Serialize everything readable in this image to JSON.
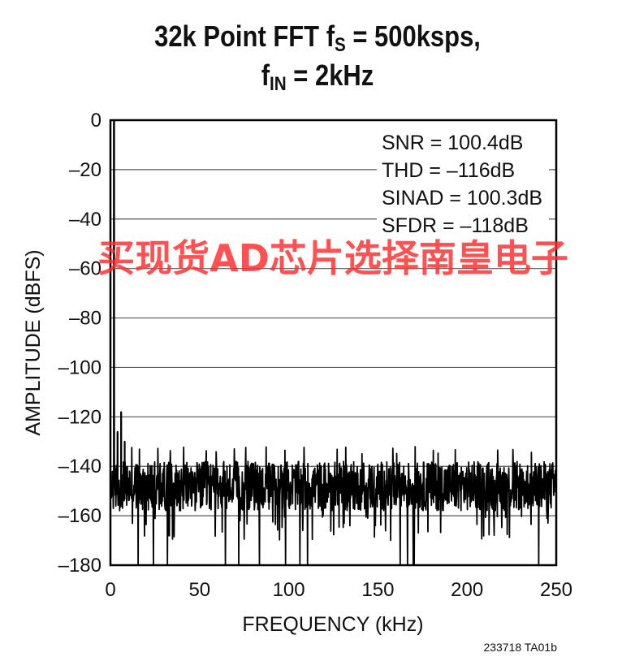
{
  "title": {
    "line1_prefix": "32k Point FFT f",
    "line1_sub": "S",
    "line1_suffix": " = 500ksps,",
    "line2_prefix": "f",
    "line2_sub": "IN",
    "line2_suffix": " = 2kHz"
  },
  "stats": [
    "SNR = 100.4dB",
    "THD = –116dB",
    "SINAD = 100.3dB",
    "SFDR = –118dB"
  ],
  "figure_id": "233718 TA01b",
  "watermark": "买现货AD芯片选择南皇电子",
  "chart_data": {
    "type": "line",
    "xlabel": "FREQUENCY (kHz)",
    "ylabel": "AMPLITUDE (dBFS)",
    "xlim": [
      0,
      250
    ],
    "ylim": [
      -180,
      0
    ],
    "x_ticks": [
      0,
      50,
      100,
      150,
      200,
      250
    ],
    "x_tick_labels": [
      "0",
      "50",
      "100",
      "150",
      "200",
      "250"
    ],
    "y_ticks": [
      0,
      -20,
      -40,
      -60,
      -80,
      -100,
      -120,
      -140,
      -160,
      -180
    ],
    "y_tick_labels": [
      "0",
      "–20",
      "–40",
      "–60",
      "–80",
      "–100",
      "–120",
      "–140",
      "–160",
      "–180"
    ],
    "grid": "horizontal",
    "series": [
      {
        "fundamental": {
          "x": 2,
          "y": 0
        },
        "harmonics": [
          {
            "x": 4,
            "y": -126
          },
          {
            "x": 6,
            "y": -118
          },
          {
            "x": 8,
            "y": -130
          }
        ],
        "noise_floor": {
          "mean": -148,
          "typical_range": [
            -158,
            -138
          ],
          "min": -180
        }
      }
    ],
    "color": "#000000"
  }
}
